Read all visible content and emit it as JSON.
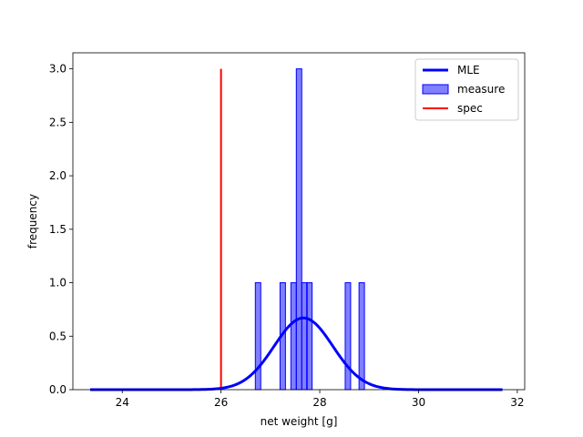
{
  "chart_data": {
    "type": "bar",
    "title": "",
    "xlabel": "net weight [g]",
    "ylabel": "frequency",
    "xlim": [
      23.0,
      32.15
    ],
    "ylim": [
      0,
      3.15
    ],
    "xticks": [
      24,
      26,
      28,
      30,
      32
    ],
    "yticks": [
      0.0,
      0.5,
      1.0,
      1.5,
      2.0,
      2.5,
      3.0
    ],
    "xtick_labels": [
      "24",
      "26",
      "28",
      "30",
      "32"
    ],
    "ytick_labels": [
      "0.0",
      "0.5",
      "1.0",
      "1.5",
      "2.0",
      "2.5",
      "3.0"
    ],
    "grid": false,
    "legend_position": "top-right",
    "series": [
      {
        "name": "MLE",
        "kind": "line",
        "color": "#0000ff",
        "distribution": "normal",
        "mean": 27.67,
        "sd": 0.595,
        "x_range": [
          23.35,
          31.7
        ]
      },
      {
        "name": "measure",
        "kind": "histogram",
        "color": "#0000ff",
        "opacity": 0.5,
        "bin_width": 0.11,
        "bins": [
          {
            "x": 26.75,
            "value": 1
          },
          {
            "x": 27.25,
            "value": 1
          },
          {
            "x": 27.47,
            "value": 1
          },
          {
            "x": 27.58,
            "value": 3
          },
          {
            "x": 27.69,
            "value": 1
          },
          {
            "x": 27.79,
            "value": 1
          },
          {
            "x": 28.57,
            "value": 1
          },
          {
            "x": 28.85,
            "value": 1
          }
        ]
      },
      {
        "name": "spec",
        "kind": "vline",
        "color": "#ff0000",
        "x": 26.0,
        "y_range": [
          0,
          3.0
        ]
      }
    ]
  }
}
